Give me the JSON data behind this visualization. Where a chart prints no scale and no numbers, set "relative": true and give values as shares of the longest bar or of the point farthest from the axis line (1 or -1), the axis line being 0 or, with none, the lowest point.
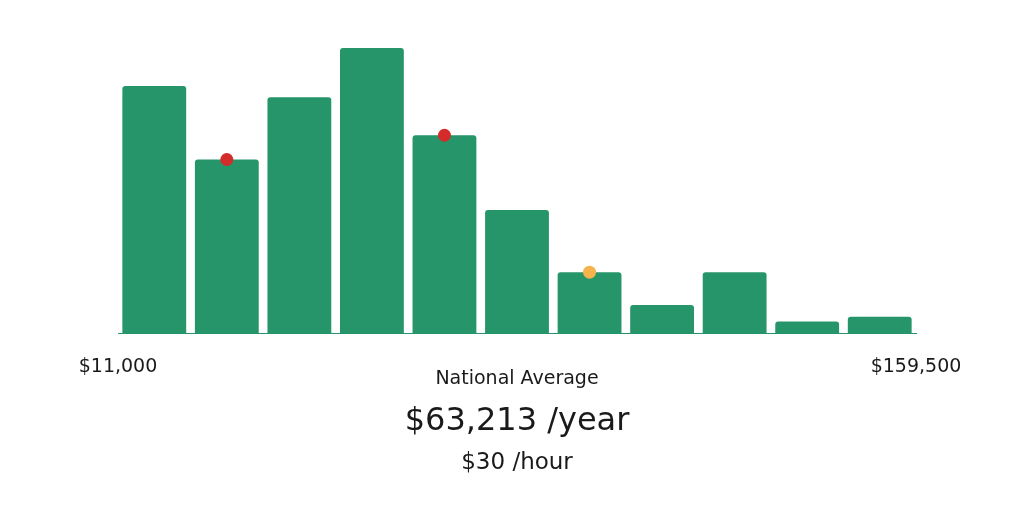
{
  "chart_data": {
    "type": "bar",
    "relative": true,
    "color": "#27956a",
    "x": [
      17750,
      31250,
      44750,
      58250,
      71750,
      85250,
      98750,
      112250,
      125750,
      139250,
      152750
    ],
    "values": [
      0.867,
      0.609,
      0.827,
      1,
      0.694,
      0.432,
      0.214,
      0.099,
      0.214,
      0.041,
      0.058
    ],
    "xlim": [
      11000,
      159500
    ],
    "xticks": [
      {
        "value": 11000,
        "label": "$11,000"
      },
      {
        "value": 159500,
        "label": "$159,500"
      }
    ],
    "series": [
      {
        "type": "scatter",
        "x": [
          31250,
          71750,
          98750
        ],
        "values": [
          0.609,
          0.694,
          0.214
        ],
        "colors": [
          "#d42b2b",
          "#d42b2b",
          "#f6b24b"
        ]
      }
    ],
    "legend": false,
    "annotations": [
      "National Average",
      "$63,213 /year",
      "$30 /hour"
    ]
  }
}
